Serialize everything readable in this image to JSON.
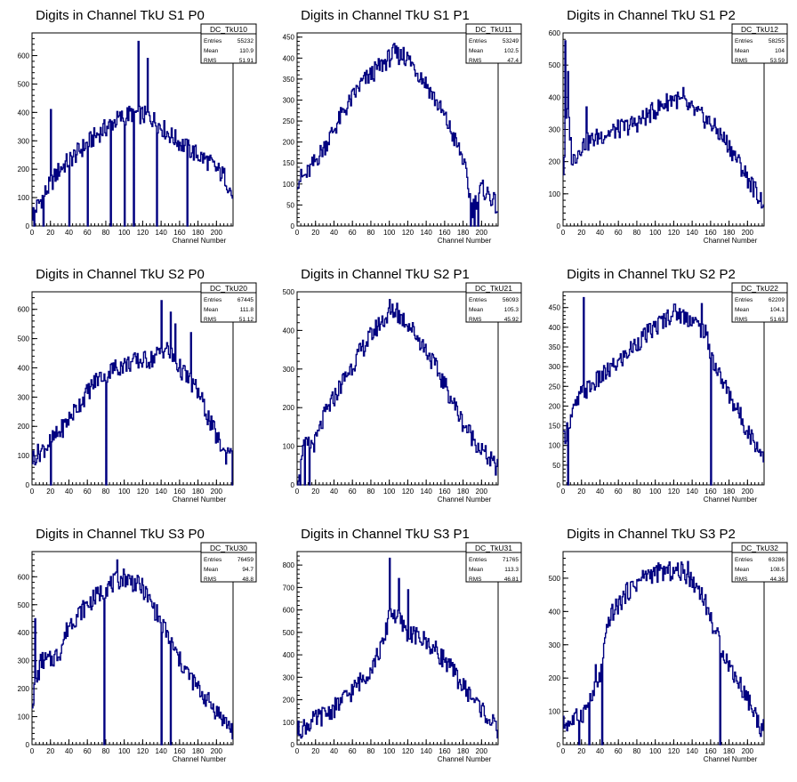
{
  "colors": {
    "line": "#000080",
    "axis": "#000000",
    "background": "#ffffff"
  },
  "chart_data": [
    {
      "type": "histogram",
      "title": "Digits in Channel TkU S1 P0",
      "xlabel": "Channel Number",
      "ylabel": "",
      "xlim": [
        0,
        218
      ],
      "ylim": [
        0,
        680
      ],
      "yticks": [
        0,
        100,
        200,
        300,
        400,
        500,
        600
      ],
      "xticks": [
        0,
        20,
        40,
        60,
        80,
        100,
        120,
        140,
        160,
        180,
        200
      ],
      "stats": {
        "name": "DC_TkU10",
        "rows": [
          [
            "Entries",
            "55232"
          ],
          [
            "Mean",
            "110.9"
          ],
          [
            "RMS",
            "51.91"
          ]
        ]
      },
      "profile": [
        [
          0,
          40
        ],
        [
          15,
          120
        ],
        [
          30,
          200
        ],
        [
          50,
          260
        ],
        [
          70,
          320
        ],
        [
          90,
          370
        ],
        [
          110,
          400
        ],
        [
          130,
          380
        ],
        [
          150,
          320
        ],
        [
          170,
          270
        ],
        [
          190,
          230
        ],
        [
          210,
          170
        ],
        [
          218,
          100
        ]
      ],
      "spikes": [
        [
          20,
          410
        ],
        [
          115,
          650
        ],
        [
          125,
          590
        ],
        [
          2,
          0
        ],
        [
          12,
          0
        ],
        [
          40,
          0
        ],
        [
          60,
          0
        ],
        [
          85,
          0
        ],
        [
          100,
          0
        ],
        [
          110,
          0
        ],
        [
          135,
          0
        ],
        [
          168,
          0
        ]
      ]
    },
    {
      "type": "histogram",
      "title": "Digits in Channel TkU S1 P1",
      "xlabel": "Channel Number",
      "ylabel": "",
      "xlim": [
        0,
        218
      ],
      "ylim": [
        0,
        460
      ],
      "yticks": [
        0,
        50,
        100,
        150,
        200,
        250,
        300,
        350,
        400,
        450
      ],
      "xticks": [
        0,
        20,
        40,
        60,
        80,
        100,
        120,
        140,
        160,
        180,
        200
      ],
      "stats": {
        "name": "DC_TkU11",
        "rows": [
          [
            "Entries",
            "53249"
          ],
          [
            "Mean",
            "102.5"
          ],
          [
            "RMS",
            "47.4"
          ]
        ]
      },
      "profile": [
        [
          0,
          110
        ],
        [
          10,
          120
        ],
        [
          30,
          190
        ],
        [
          50,
          270
        ],
        [
          70,
          340
        ],
        [
          90,
          380
        ],
        [
          105,
          410
        ],
        [
          120,
          400
        ],
        [
          140,
          340
        ],
        [
          160,
          260
        ],
        [
          180,
          160
        ],
        [
          190,
          40
        ],
        [
          200,
          90
        ],
        [
          210,
          70
        ],
        [
          218,
          40
        ]
      ],
      "spikes": [
        [
          105,
          435
        ],
        [
          115,
          425
        ],
        [
          188,
          0
        ],
        [
          192,
          0
        ],
        [
          196,
          0
        ]
      ]
    },
    {
      "type": "histogram",
      "title": "Digits in Channel TkU S1 P2",
      "xlabel": "Channel Number",
      "ylabel": "",
      "xlim": [
        0,
        218
      ],
      "ylim": [
        0,
        600
      ],
      "yticks": [
        0,
        100,
        200,
        300,
        400,
        500,
        600
      ],
      "xticks": [
        0,
        20,
        40,
        60,
        80,
        100,
        120,
        140,
        160,
        180,
        200
      ],
      "stats": {
        "name": "DC_TkU12",
        "rows": [
          [
            "Entries",
            "58255"
          ],
          [
            "Mean",
            "104"
          ],
          [
            "RMS",
            "53.59"
          ]
        ]
      },
      "profile": [
        [
          0,
          150
        ],
        [
          5,
          380
        ],
        [
          10,
          200
        ],
        [
          20,
          250
        ],
        [
          40,
          280
        ],
        [
          60,
          300
        ],
        [
          80,
          320
        ],
        [
          100,
          360
        ],
        [
          120,
          400
        ],
        [
          140,
          360
        ],
        [
          160,
          320
        ],
        [
          180,
          250
        ],
        [
          200,
          150
        ],
        [
          215,
          80
        ]
      ],
      "spikes": [
        [
          2,
          575
        ],
        [
          5,
          480
        ],
        [
          25,
          370
        ],
        [
          130,
          430
        ]
      ]
    },
    {
      "type": "histogram",
      "title": "Digits in Channel TkU S2 P0",
      "xlabel": "Channel Number",
      "ylabel": "",
      "xlim": [
        0,
        218
      ],
      "ylim": [
        0,
        660
      ],
      "yticks": [
        0,
        100,
        200,
        300,
        400,
        500,
        600
      ],
      "xticks": [
        0,
        20,
        40,
        60,
        80,
        100,
        120,
        140,
        160,
        180,
        200
      ],
      "stats": {
        "name": "DC_TkU20",
        "rows": [
          [
            "Entries",
            "67445"
          ],
          [
            "Mean",
            "111.8"
          ],
          [
            "RMS",
            "51.12"
          ]
        ]
      },
      "profile": [
        [
          0,
          90
        ],
        [
          15,
          130
        ],
        [
          30,
          180
        ],
        [
          50,
          270
        ],
        [
          70,
          360
        ],
        [
          90,
          400
        ],
        [
          110,
          420
        ],
        [
          130,
          430
        ],
        [
          145,
          470
        ],
        [
          160,
          400
        ],
        [
          180,
          320
        ],
        [
          195,
          200
        ],
        [
          210,
          100
        ],
        [
          218,
          150
        ]
      ],
      "spikes": [
        [
          20,
          0
        ],
        [
          80,
          0
        ],
        [
          140,
          630
        ],
        [
          150,
          590
        ],
        [
          155,
          550
        ],
        [
          172,
          520
        ],
        [
          218,
          0
        ]
      ]
    },
    {
      "type": "histogram",
      "title": "Digits in Channel TkU S2 P1",
      "xlabel": "Channel Number",
      "ylabel": "",
      "xlim": [
        0,
        218
      ],
      "ylim": [
        0,
        500
      ],
      "yticks": [
        0,
        100,
        200,
        300,
        400,
        500
      ],
      "xticks": [
        0,
        20,
        40,
        60,
        80,
        100,
        120,
        140,
        160,
        180,
        200
      ],
      "stats": {
        "name": "DC_TkU21",
        "rows": [
          [
            "Entries",
            "56093"
          ],
          [
            "Mean",
            "105.3"
          ],
          [
            "RMS",
            "45.92"
          ]
        ]
      },
      "profile": [
        [
          0,
          0
        ],
        [
          5,
          90
        ],
        [
          10,
          100
        ],
        [
          20,
          110
        ],
        [
          30,
          180
        ],
        [
          50,
          270
        ],
        [
          70,
          350
        ],
        [
          90,
          420
        ],
        [
          105,
          450
        ],
        [
          120,
          420
        ],
        [
          140,
          350
        ],
        [
          160,
          260
        ],
        [
          180,
          160
        ],
        [
          200,
          90
        ],
        [
          218,
          40
        ]
      ],
      "spikes": [
        [
          3,
          0
        ],
        [
          8,
          0
        ],
        [
          13,
          0
        ],
        [
          100,
          480
        ],
        [
          108,
          470
        ]
      ]
    },
    {
      "type": "histogram",
      "title": "Digits in Channel TkU S2 P2",
      "xlabel": "Channel Number",
      "ylabel": "",
      "xlim": [
        0,
        218
      ],
      "ylim": [
        0,
        490
      ],
      "yticks": [
        0,
        50,
        100,
        150,
        200,
        250,
        300,
        350,
        400,
        450
      ],
      "xticks": [
        0,
        20,
        40,
        60,
        80,
        100,
        120,
        140,
        160,
        180,
        200
      ],
      "stats": {
        "name": "DC_TkU22",
        "rows": [
          [
            "Entries",
            "62209"
          ],
          [
            "Mean",
            "104.1"
          ],
          [
            "RMS",
            "51.63"
          ]
        ]
      },
      "profile": [
        [
          0,
          110
        ],
        [
          10,
          180
        ],
        [
          20,
          230
        ],
        [
          40,
          270
        ],
        [
          60,
          310
        ],
        [
          80,
          360
        ],
        [
          100,
          400
        ],
        [
          120,
          440
        ],
        [
          140,
          420
        ],
        [
          155,
          380
        ],
        [
          165,
          300
        ],
        [
          180,
          230
        ],
        [
          200,
          140
        ],
        [
          215,
          80
        ]
      ],
      "spikes": [
        [
          22,
          475
        ],
        [
          5,
          0
        ],
        [
          150,
          460
        ],
        [
          160,
          0
        ]
      ]
    },
    {
      "type": "histogram",
      "title": "Digits in Channel TkU S3 P0",
      "xlabel": "Channel Number",
      "ylabel": "",
      "xlim": [
        0,
        218
      ],
      "ylim": [
        0,
        690
      ],
      "yticks": [
        0,
        100,
        200,
        300,
        400,
        500,
        600
      ],
      "xticks": [
        0,
        20,
        40,
        60,
        80,
        100,
        120,
        140,
        160,
        180,
        200
      ],
      "stats": {
        "name": "DC_TkU30",
        "rows": [
          [
            "Entries",
            "76459"
          ],
          [
            "Mean",
            "94.7"
          ],
          [
            "RMS",
            "48.8"
          ]
        ]
      },
      "profile": [
        [
          0,
          150
        ],
        [
          10,
          300
        ],
        [
          20,
          300
        ],
        [
          30,
          330
        ],
        [
          40,
          430
        ],
        [
          60,
          500
        ],
        [
          80,
          560
        ],
        [
          100,
          600
        ],
        [
          120,
          560
        ],
        [
          140,
          440
        ],
        [
          160,
          300
        ],
        [
          180,
          200
        ],
        [
          200,
          120
        ],
        [
          218,
          50
        ]
      ],
      "spikes": [
        [
          3,
          450
        ],
        [
          78,
          660
        ],
        [
          92,
          660
        ],
        [
          78,
          0
        ],
        [
          140,
          0
        ],
        [
          150,
          0
        ]
      ]
    },
    {
      "type": "histogram",
      "title": "Digits in Channel TkU S3 P1",
      "xlabel": "Channel Number",
      "ylabel": "",
      "xlim": [
        0,
        218
      ],
      "ylim": [
        0,
        860
      ],
      "yticks": [
        0,
        100,
        200,
        300,
        400,
        500,
        600,
        700,
        800
      ],
      "xticks": [
        0,
        20,
        40,
        60,
        80,
        100,
        120,
        140,
        160,
        180,
        200
      ],
      "stats": {
        "name": "DC_TkU31",
        "rows": [
          [
            "Entries",
            "71765"
          ],
          [
            "Mean",
            "113.3"
          ],
          [
            "RMS",
            "46.81"
          ]
        ]
      },
      "profile": [
        [
          0,
          60
        ],
        [
          20,
          110
        ],
        [
          40,
          160
        ],
        [
          60,
          240
        ],
        [
          80,
          340
        ],
        [
          95,
          460
        ],
        [
          100,
          600
        ],
        [
          110,
          560
        ],
        [
          120,
          500
        ],
        [
          140,
          460
        ],
        [
          160,
          380
        ],
        [
          180,
          260
        ],
        [
          200,
          160
        ],
        [
          218,
          60
        ]
      ],
      "spikes": [
        [
          100,
          830
        ],
        [
          110,
          740
        ],
        [
          120,
          690
        ]
      ]
    },
    {
      "type": "histogram",
      "title": "Digits in Channel TkU S3 P2",
      "xlabel": "Channel Number",
      "ylabel": "",
      "xlim": [
        0,
        218
      ],
      "ylim": [
        0,
        580
      ],
      "yticks": [
        0,
        100,
        200,
        300,
        400,
        500
      ],
      "xticks": [
        0,
        20,
        40,
        60,
        80,
        100,
        120,
        140,
        160,
        180,
        200
      ],
      "stats": {
        "name": "DC_TkU32",
        "rows": [
          [
            "Entries",
            "63286"
          ],
          [
            "Mean",
            "108.5"
          ],
          [
            "RMS",
            "44.36"
          ]
        ]
      },
      "profile": [
        [
          0,
          60
        ],
        [
          10,
          70
        ],
        [
          20,
          90
        ],
        [
          30,
          130
        ],
        [
          40,
          200
        ],
        [
          50,
          380
        ],
        [
          70,
          460
        ],
        [
          90,
          510
        ],
        [
          110,
          520
        ],
        [
          130,
          520
        ],
        [
          150,
          460
        ],
        [
          165,
          340
        ],
        [
          180,
          240
        ],
        [
          200,
          140
        ],
        [
          215,
          50
        ]
      ],
      "spikes": [
        [
          17,
          0
        ],
        [
          28,
          0
        ],
        [
          35,
          240
        ],
        [
          42,
          0
        ],
        [
          170,
          0
        ],
        [
          135,
          550
        ]
      ]
    }
  ]
}
